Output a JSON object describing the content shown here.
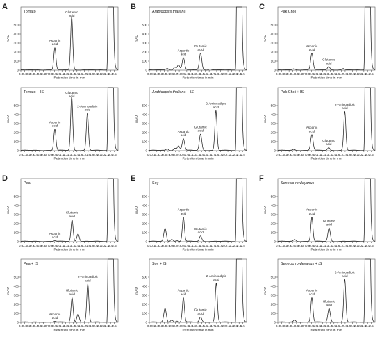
{
  "chart_data": {
    "type": "line",
    "xlabel": "Retention time in min",
    "ylabel": "mAU",
    "xlim": [
      0,
      2.6
    ],
    "xticks": [
      "0.0",
      "0.1",
      "0.2",
      "0.3",
      "0.4",
      "0.5",
      "0.6",
      "0.7",
      "0.8",
      "0.9",
      "1.0",
      "1.1",
      "1.2",
      "1.3",
      "1.4",
      "1.5",
      "1.6",
      "1.7",
      "1.8",
      "1.9",
      "2.0",
      "2.1",
      "2.2",
      "2.3",
      "2.4",
      "2.5"
    ],
    "yticks": [
      0,
      100,
      200,
      300,
      400,
      500
    ],
    "ylim": [
      0,
      700
    ],
    "grid": false,
    "groups": [
      {
        "letter": "A",
        "panels": [
          {
            "name": "Tomato",
            "italic": false,
            "peaks": [
              {
                "label": "Aspartic acid",
                "x": 0.91,
                "y": 245
              },
              {
                "label": "Glutamic acid",
                "x": 1.36,
                "y": 590
              }
            ],
            "solvent_rise_x": 2.33
          },
          {
            "name": "Tomato + IS",
            "italic": false,
            "peaks": [
              {
                "label": "Aspartic acid",
                "x": 0.91,
                "y": 235
              },
              {
                "label": "Glutamic acid",
                "x": 1.36,
                "y": 600
              },
              {
                "label": "2-Aminoadipic acid",
                "x": 1.78,
                "y": 410
              }
            ],
            "solvent_rise_x": 2.33
          }
        ]
      },
      {
        "letter": "B",
        "panels": [
          {
            "name": "Arabidopsis thaliana",
            "italic": true,
            "peaks": [
              {
                "x": 0.48,
                "y": 15
              },
              {
                "x": 0.68,
                "y": 30
              },
              {
                "x": 0.78,
                "y": 55
              },
              {
                "label": "Aspartic acid",
                "x": 0.91,
                "y": 135
              },
              {
                "label": "Glutamic acid",
                "x": 1.37,
                "y": 185
              },
              {
                "x": 1.62,
                "y": 10
              }
            ],
            "solvent_rise_x": 2.33
          },
          {
            "name": "Arabidopsis thaliana + IS",
            "italic": true,
            "peaks": [
              {
                "x": 0.48,
                "y": 15
              },
              {
                "x": 0.68,
                "y": 25
              },
              {
                "x": 0.78,
                "y": 50
              },
              {
                "label": "Aspartic acid",
                "x": 0.91,
                "y": 130
              },
              {
                "label": "Glutamic acid",
                "x": 1.37,
                "y": 180
              },
              {
                "label": "2-Aminoadipic acid",
                "x": 1.78,
                "y": 440
              }
            ],
            "solvent_rise_x": 2.33
          }
        ]
      },
      {
        "letter": "C",
        "panels": [
          {
            "name": "Pak Choi",
            "italic": false,
            "peaks": [
              {
                "x": 0.43,
                "y": 10
              },
              {
                "label": "Aspartic acid",
                "x": 0.91,
                "y": 185
              },
              {
                "label": "Glutamic acid",
                "x": 1.36,
                "y": 35
              },
              {
                "x": 1.75,
                "y": 12
              }
            ],
            "solvent_rise_x": 2.33
          },
          {
            "name": "Pak Choi + IS",
            "italic": false,
            "peaks": [
              {
                "x": 0.43,
                "y": 10
              },
              {
                "label": "Aspartic acid",
                "x": 0.91,
                "y": 175
              },
              {
                "label": "Glutamic acid",
                "x": 1.36,
                "y": 30
              },
              {
                "label": "2-Aminoadipic acid",
                "x": 1.79,
                "y": 430
              }
            ],
            "solvent_rise_x": 2.33
          }
        ]
      },
      {
        "letter": "D",
        "panels": [
          {
            "name": "Pea",
            "italic": false,
            "peaks": [
              {
                "label": "Aspartic acid",
                "x": 0.91,
                "y": 8
              },
              {
                "label": "Glutamic acid",
                "x": 1.37,
                "y": 240
              },
              {
                "x": 1.53,
                "y": 85
              }
            ],
            "solvent_rise_x": 2.33
          },
          {
            "name": "Pea + IS",
            "italic": false,
            "peaks": [
              {
                "label": "Aspartic acid",
                "x": 0.91,
                "y": 8
              },
              {
                "label": "Glutamic acid",
                "x": 1.37,
                "y": 270
              },
              {
                "x": 1.53,
                "y": 90
              },
              {
                "label": "2-Aminoadipic acid",
                "x": 1.79,
                "y": 420
              }
            ],
            "solvent_rise_x": 2.33
          }
        ]
      },
      {
        "letter": "E",
        "panels": [
          {
            "name": "Soy",
            "italic": false,
            "peaks": [
              {
                "x": 0.42,
                "y": 145
              },
              {
                "x": 0.6,
                "y": 25
              },
              {
                "x": 0.74,
                "y": 10
              },
              {
                "label": "Aspartic acid",
                "x": 0.91,
                "y": 270
              },
              {
                "label": "Glutamic acid",
                "x": 1.37,
                "y": 60
              }
            ],
            "solvent_rise_x": 2.33
          },
          {
            "name": "Soy + IS",
            "italic": false,
            "peaks": [
              {
                "x": 0.42,
                "y": 150
              },
              {
                "x": 0.6,
                "y": 25
              },
              {
                "x": 0.74,
                "y": 10
              },
              {
                "label": "Aspartic acid",
                "x": 0.91,
                "y": 270
              },
              {
                "label": "Glutamic acid",
                "x": 1.37,
                "y": 55
              },
              {
                "label": "2-Aminoadipic acid",
                "x": 1.79,
                "y": 430
              }
            ],
            "solvent_rise_x": 2.33
          }
        ]
      },
      {
        "letter": "F",
        "panels": [
          {
            "name": "Senecio rowleyanus",
            "italic": true,
            "peaks": [
              {
                "x": 0.45,
                "y": 20
              },
              {
                "label": "Aspartic acid",
                "x": 0.91,
                "y": 270
              },
              {
                "label": "Glutamic acid",
                "x": 1.37,
                "y": 150
              }
            ],
            "solvent_rise_x": 2.33
          },
          {
            "name": "Senecio rowleyanus + IS",
            "italic": true,
            "peaks": [
              {
                "x": 0.45,
                "y": 20
              },
              {
                "label": "Aspartic acid",
                "x": 0.91,
                "y": 270
              },
              {
                "label": "Glutamic acid",
                "x": 1.37,
                "y": 150
              },
              {
                "label": "2-Aminoadipic acid",
                "x": 1.79,
                "y": 470
              }
            ],
            "solvent_rise_x": 2.33
          }
        ]
      }
    ]
  }
}
